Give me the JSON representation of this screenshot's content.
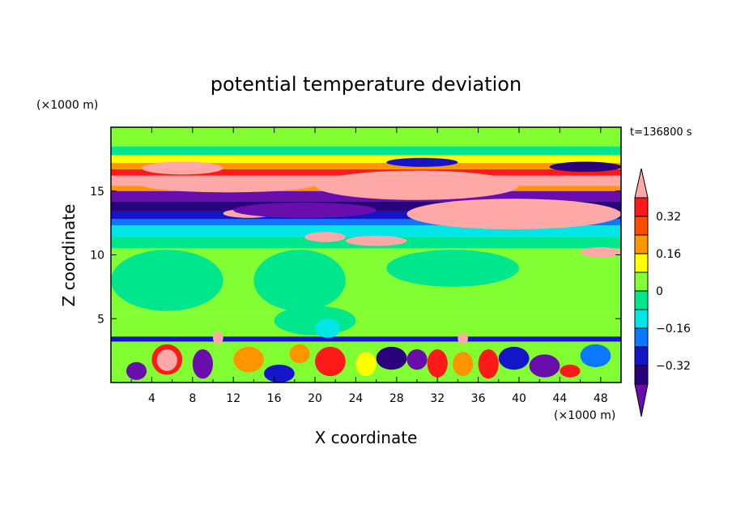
{
  "chart_data": {
    "type": "heatmap",
    "title": "potential temperature deviation",
    "xlabel": "X coordinate",
    "ylabel": "Z coordinate",
    "x_unit": "(×1000 m)",
    "y_unit": "(×1000 m)",
    "time_label": "t=136800 s",
    "xlim": [
      0,
      50
    ],
    "ylim": [
      0,
      20
    ],
    "x_ticks": [
      4,
      8,
      12,
      16,
      20,
      24,
      28,
      32,
      36,
      40,
      44,
      48
    ],
    "y_ticks": [
      5,
      10,
      15
    ],
    "colorbar": {
      "levels": [
        -0.4,
        -0.32,
        -0.24,
        -0.16,
        -0.08,
        0,
        0.08,
        0.16,
        0.24,
        0.32,
        0.4
      ],
      "labeled_ticks": [
        0.32,
        0.16,
        0,
        -0.16,
        -0.32
      ],
      "colors": [
        "#6a0dad",
        "#2b007d",
        "#1414c8",
        "#0a78ff",
        "#00e6e6",
        "#00e68c",
        "#82ff32",
        "#ffff00",
        "#ff9600",
        "#ff4b00",
        "#ff1a1a",
        "#ffa8a8"
      ]
    },
    "bands": [
      {
        "z0": 18.5,
        "z1": 20.0,
        "color": "#82ff32"
      },
      {
        "z0": 17.8,
        "z1": 18.5,
        "color": "#00e68c"
      },
      {
        "z0": 17.2,
        "z1": 17.8,
        "color": "#ffff00"
      },
      {
        "z0": 16.7,
        "z1": 17.2,
        "color": "#ff9600"
      },
      {
        "z0": 16.2,
        "z1": 16.7,
        "color": "#ff1a1a"
      },
      {
        "z0": 15.4,
        "z1": 16.2,
        "color": "#ffa8a8"
      },
      {
        "z0": 15.0,
        "z1": 15.4,
        "color": "#ff9600"
      },
      {
        "z0": 14.2,
        "z1": 15.0,
        "color": "#6a0dad"
      },
      {
        "z0": 13.4,
        "z1": 14.2,
        "color": "#2b007d"
      },
      {
        "z0": 12.8,
        "z1": 13.4,
        "color": "#1414c8"
      },
      {
        "z0": 12.3,
        "z1": 12.8,
        "color": "#0a78ff"
      },
      {
        "z0": 11.4,
        "z1": 12.3,
        "color": "#00e6e6"
      },
      {
        "z0": 10.5,
        "z1": 11.4,
        "color": "#00e68c"
      },
      {
        "z0": 5.5,
        "z1": 10.5,
        "color": "#82ff32"
      },
      {
        "z0": 3.6,
        "z1": 5.5,
        "color": "#82ff32"
      },
      {
        "z0": 3.2,
        "z1": 3.6,
        "color": "#1414c8"
      },
      {
        "z0": 0.0,
        "z1": 3.2,
        "color": "#82ff32"
      }
    ],
    "features": [
      {
        "shape": "blob",
        "x": [
          3,
          11
        ],
        "z": [
          16.3,
          17.3
        ],
        "color": "#ffa8a8"
      },
      {
        "shape": "blob",
        "x": [
          3,
          20
        ],
        "z": [
          14.9,
          16.1
        ],
        "color": "#ffa8a8"
      },
      {
        "shape": "blob",
        "x": [
          20,
          40
        ],
        "z": [
          14.3,
          16.6
        ],
        "color": "#ffa8a8"
      },
      {
        "shape": "blob",
        "x": [
          29,
          50
        ],
        "z": [
          12.0,
          14.4
        ],
        "color": "#ffa8a8"
      },
      {
        "shape": "blob",
        "x": [
          11,
          16
        ],
        "z": [
          12.9,
          13.6
        ],
        "color": "#ffa8a8"
      },
      {
        "shape": "blob",
        "x": [
          19,
          23
        ],
        "z": [
          11.0,
          11.8
        ],
        "color": "#ffa8a8"
      },
      {
        "shape": "blob",
        "x": [
          23,
          29
        ],
        "z": [
          10.7,
          11.5
        ],
        "color": "#ffa8a8"
      },
      {
        "shape": "blob",
        "x": [
          46,
          50
        ],
        "z": [
          9.8,
          10.6
        ],
        "color": "#ffa8a8"
      },
      {
        "shape": "blob",
        "x": [
          12,
          26
        ],
        "z": [
          12.9,
          14.1
        ],
        "color": "#6a0dad"
      },
      {
        "shape": "blob",
        "x": [
          27,
          34
        ],
        "z": [
          16.9,
          17.6
        ],
        "color": "#1414c8"
      },
      {
        "shape": "blob",
        "x": [
          43,
          50
        ],
        "z": [
          16.5,
          17.3
        ],
        "color": "#2b007d"
      },
      {
        "shape": "blob",
        "x": [
          2,
          5
        ],
        "z": [
          7.3,
          8.1
        ],
        "color": "#ff1a1a"
      },
      {
        "shape": "blob",
        "x": [
          0,
          11
        ],
        "z": [
          5.6,
          10.4
        ],
        "color": "#00e68c"
      },
      {
        "shape": "blob",
        "x": [
          14,
          23
        ],
        "z": [
          5.6,
          10.4
        ],
        "color": "#00e68c"
      },
      {
        "shape": "blob",
        "x": [
          27,
          40
        ],
        "z": [
          7.5,
          10.4
        ],
        "color": "#00e68c"
      },
      {
        "shape": "blob",
        "x": [
          16,
          24
        ],
        "z": [
          3.7,
          6.0
        ],
        "color": "#00e68c"
      },
      {
        "shape": "blob",
        "x": [
          20,
          22.5
        ],
        "z": [
          3.5,
          5.0
        ],
        "color": "#00e6e6"
      },
      {
        "shape": "blob",
        "x": [
          4,
          7
        ],
        "z": [
          0.6,
          3.0
        ],
        "color": "#ff1a1a"
      },
      {
        "shape": "blob",
        "x": [
          4.5,
          6.5
        ],
        "z": [
          0.9,
          2.6
        ],
        "color": "#ffa8a8"
      },
      {
        "shape": "blob",
        "x": [
          8,
          10
        ],
        "z": [
          0.3,
          2.6
        ],
        "color": "#6a0dad"
      },
      {
        "shape": "blob",
        "x": [
          10,
          11
        ],
        "z": [
          3.0,
          4.0
        ],
        "color": "#ffa8a8"
      },
      {
        "shape": "blob",
        "x": [
          12,
          15
        ],
        "z": [
          0.8,
          2.8
        ],
        "color": "#ff9600"
      },
      {
        "shape": "blob",
        "x": [
          15,
          18
        ],
        "z": [
          0.0,
          1.4
        ],
        "color": "#1414c8"
      },
      {
        "shape": "blob",
        "x": [
          20,
          23
        ],
        "z": [
          0.5,
          2.8
        ],
        "color": "#ff1a1a"
      },
      {
        "shape": "blob",
        "x": [
          24,
          26
        ],
        "z": [
          0.5,
          2.4
        ],
        "color": "#ffff00"
      },
      {
        "shape": "blob",
        "x": [
          26,
          29
        ],
        "z": [
          1.0,
          2.8
        ],
        "color": "#2b007d"
      },
      {
        "shape": "blob",
        "x": [
          29,
          31
        ],
        "z": [
          1.0,
          2.6
        ],
        "color": "#6a0dad"
      },
      {
        "shape": "blob",
        "x": [
          31,
          33
        ],
        "z": [
          0.4,
          2.6
        ],
        "color": "#ff1a1a"
      },
      {
        "shape": "blob",
        "x": [
          33.5,
          35.5
        ],
        "z": [
          0.5,
          2.4
        ],
        "color": "#ff9600"
      },
      {
        "shape": "blob",
        "x": [
          36,
          38
        ],
        "z": [
          0.3,
          2.6
        ],
        "color": "#ff1a1a"
      },
      {
        "shape": "blob",
        "x": [
          38,
          41
        ],
        "z": [
          1.0,
          2.8
        ],
        "color": "#1414c8"
      },
      {
        "shape": "blob",
        "x": [
          41,
          44
        ],
        "z": [
          0.4,
          2.2
        ],
        "color": "#6a0dad"
      },
      {
        "shape": "blob",
        "x": [
          44,
          46
        ],
        "z": [
          0.4,
          1.4
        ],
        "color": "#ff1a1a"
      },
      {
        "shape": "blob",
        "x": [
          46,
          49
        ],
        "z": [
          1.2,
          3.0
        ],
        "color": "#0a78ff"
      },
      {
        "shape": "blob",
        "x": [
          1.5,
          3.5
        ],
        "z": [
          0.2,
          1.6
        ],
        "color": "#6a0dad"
      },
      {
        "shape": "blob",
        "x": [
          17.5,
          19.5
        ],
        "z": [
          1.5,
          3.0
        ],
        "color": "#ff9600"
      },
      {
        "shape": "blob",
        "x": [
          34,
          35
        ],
        "z": [
          3.0,
          3.9
        ],
        "color": "#ffa8a8"
      }
    ]
  }
}
